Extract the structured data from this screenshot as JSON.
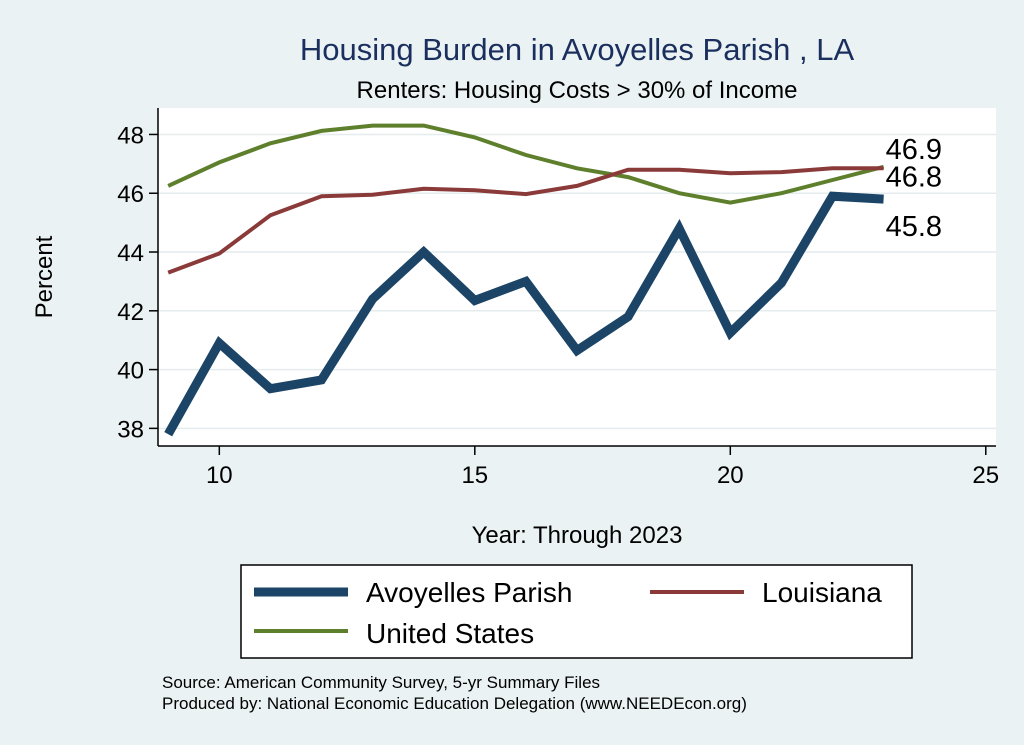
{
  "chart_data": {
    "type": "line",
    "title": "Housing Burden in Avoyelles Parish , LA",
    "subtitle": "Renters: Housing Costs > 30% of Income",
    "xlabel": "Year: Through 2023",
    "ylabel": "Percent",
    "xlim": [
      8.8,
      25.2
    ],
    "ylim": [
      37.4,
      48.9
    ],
    "xticks": [
      10,
      15,
      20,
      25
    ],
    "yticks": [
      38,
      40,
      42,
      44,
      46,
      48
    ],
    "grid": true,
    "legend_position": "bottom",
    "x": [
      9,
      10,
      11,
      12,
      13,
      14,
      15,
      16,
      17,
      18,
      19,
      20,
      21,
      22,
      23
    ],
    "series": [
      {
        "name": "Avoyelles Parish",
        "color": "#1b4466",
        "values": [
          37.8,
          40.9,
          39.35,
          39.65,
          42.4,
          44.0,
          42.35,
          43.0,
          40.65,
          41.8,
          44.8,
          41.25,
          42.95,
          45.9,
          45.8
        ],
        "end_label": "45.8"
      },
      {
        "name": "Louisiana",
        "color": "#8b3a3a",
        "values": [
          43.3,
          43.95,
          45.25,
          45.9,
          45.95,
          46.15,
          46.1,
          45.97,
          46.25,
          46.8,
          46.8,
          46.68,
          46.72,
          46.85,
          46.85
        ],
        "end_label": "46.8"
      },
      {
        "name": "United States",
        "color": "#5e7f2c",
        "values": [
          46.25,
          47.05,
          47.7,
          48.12,
          48.3,
          48.3,
          47.9,
          47.3,
          46.85,
          46.55,
          46.0,
          45.68,
          46.0,
          46.45,
          46.9
        ],
        "end_label": "46.9"
      }
    ]
  },
  "source_lines": [
    "Source: American Community Survey, 5-yr Summary Files",
    "Produced by: National Economic Education Delegation (www.NEEDEcon.org)"
  ]
}
